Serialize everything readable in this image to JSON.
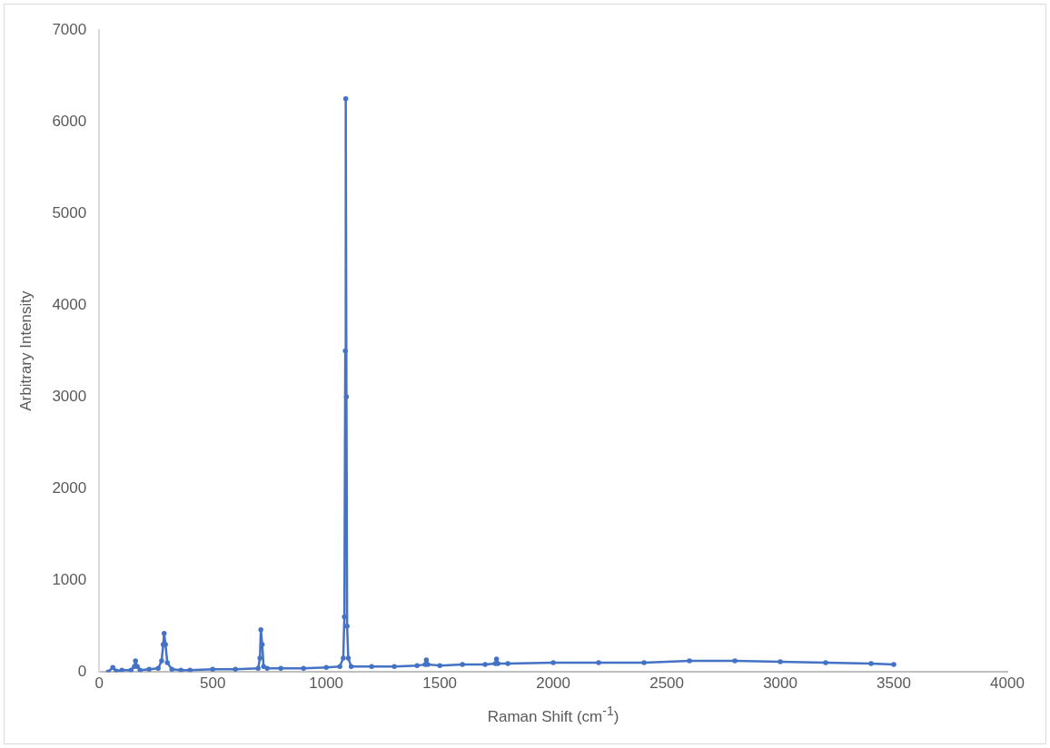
{
  "chart_data": {
    "type": "line",
    "xlabel": "Raman Shift (cm$^{-1}$)",
    "ylabel": "Arbitrary Intensity",
    "xlim": [
      0,
      4000
    ],
    "xticks": [
      0,
      500,
      1000,
      1500,
      2000,
      2500,
      3000,
      3500,
      4000
    ],
    "ylim": [
      0,
      7000
    ],
    "yticks": [
      0,
      1000,
      2000,
      3000,
      4000,
      5000,
      6000,
      7000
    ],
    "grid": false,
    "legend": false,
    "marker": "circle",
    "line_style": "solid",
    "series": [
      {
        "color": "#4472c4",
        "x": [
          40,
          60,
          75,
          100,
          140,
          155,
          160,
          168,
          180,
          220,
          260,
          275,
          282,
          286,
          292,
          300,
          320,
          360,
          400,
          500,
          600,
          700,
          708,
          712,
          718,
          724,
          740,
          800,
          900,
          1000,
          1060,
          1075,
          1080,
          1084,
          1086,
          1089,
          1092,
          1097,
          1110,
          1200,
          1300,
          1400,
          1436,
          1441,
          1447,
          1500,
          1600,
          1700,
          1745,
          1750,
          1756,
          1800,
          2000,
          2200,
          2400,
          2600,
          2800,
          3000,
          3200,
          3400,
          3500
        ],
        "values": [
          0,
          50,
          10,
          20,
          20,
          60,
          120,
          60,
          20,
          30,
          40,
          120,
          300,
          420,
          300,
          100,
          30,
          20,
          20,
          30,
          30,
          40,
          150,
          460,
          300,
          60,
          40,
          40,
          40,
          50,
          60,
          150,
          600,
          3500,
          6250,
          3000,
          500,
          150,
          60,
          60,
          60,
          70,
          80,
          130,
          80,
          70,
          80,
          80,
          90,
          140,
          90,
          90,
          100,
          100,
          100,
          120,
          120,
          110,
          100,
          90,
          80
        ]
      }
    ]
  }
}
